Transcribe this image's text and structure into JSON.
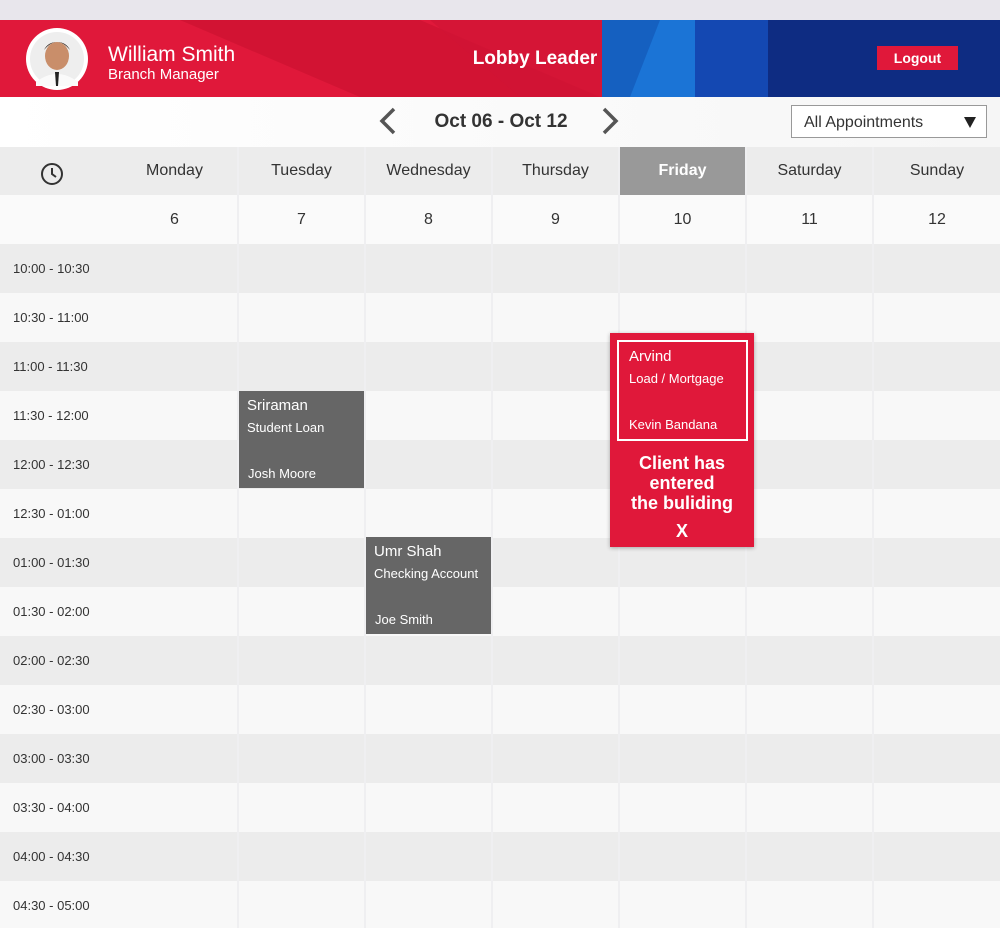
{
  "header": {
    "user": {
      "name": "William Smith",
      "role": "Branch Manager"
    },
    "title": "Lobby Leader",
    "logout": "Logout"
  },
  "nav": {
    "range": "Oct 06 - Oct 12",
    "filter": "All Appointments"
  },
  "calendar": {
    "days": [
      {
        "name": "Monday",
        "date": "6"
      },
      {
        "name": "Tuesday",
        "date": "7"
      },
      {
        "name": "Wednesday",
        "date": "8"
      },
      {
        "name": "Thursday",
        "date": "9"
      },
      {
        "name": "Friday",
        "date": "10"
      },
      {
        "name": "Saturday",
        "date": "11"
      },
      {
        "name": "Sunday",
        "date": "12"
      }
    ],
    "times": [
      "10:00 - 10:30",
      "10:30 - 11:00",
      "11:00 - 11:30",
      "11:30 - 12:00",
      "12:00 - 12:30",
      "12:30 - 01:00",
      "01:00 - 01:30",
      "01:30 - 02:00",
      "02:00 - 02:30",
      "02:30 - 03:00",
      "03:00 - 03:30",
      "03:30 - 04:00",
      "04:00 - 04:30",
      "04:30 - 05:00"
    ]
  },
  "appointments": [
    {
      "client": "Sriraman",
      "service": "Student Loan",
      "staff": "Josh Moore"
    },
    {
      "client": "Umr Shah",
      "service": "Checking Account",
      "staff": "Joe Smith"
    },
    {
      "client": "Arvind",
      "service": "Load / Mortgage",
      "staff": "Kevin Bandana",
      "alert": [
        "Client has",
        "entered",
        "the buliding"
      ],
      "close": "X"
    }
  ]
}
